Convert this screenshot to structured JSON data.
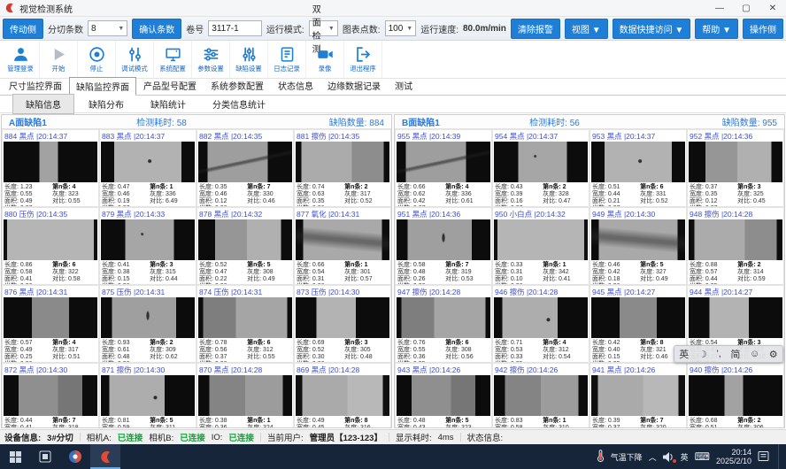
{
  "window": {
    "title": "视觉检测系统",
    "minimize": "—",
    "maximize": "▢",
    "close": "✕"
  },
  "toolbar": {
    "side_left": "传动侧",
    "strip_count_label": "分切条数",
    "strip_count_value": "8",
    "confirm_button": "确认条数",
    "roll_label": "卷号",
    "roll_value": "3117-1",
    "run_mode_label": "运行模式:",
    "run_mode_value": "双面检测",
    "chart_points_label": "图表点数:",
    "chart_points_value": "100",
    "speed_label": "运行速度:",
    "speed_value": "80.0m/min",
    "clear_alarm": "清除报警",
    "view_menu": "视图 ▼",
    "data_access_menu": "数据快捷访问 ▼",
    "help_menu": "帮助 ▼",
    "side_right": "操作侧"
  },
  "actions": [
    {
      "label": "管理登录",
      "icon": "user-icon",
      "name": "admin-login-button",
      "gray": false
    },
    {
      "label": "开始",
      "icon": "play-icon",
      "name": "start-button",
      "gray": true
    },
    {
      "label": "停止",
      "icon": "stop-icon",
      "name": "stop-button",
      "gray": false
    },
    {
      "label": "调试模式",
      "icon": "debug-sliders-icon",
      "name": "debug-mode-button",
      "gray": false
    },
    {
      "label": "系统配置",
      "icon": "monitor-icon",
      "name": "system-config-button",
      "gray": false
    },
    {
      "label": "参数设置",
      "icon": "sliders-horizontal-icon",
      "name": "parameter-settings-button",
      "gray": false
    },
    {
      "label": "缺陷设置",
      "icon": "sliders-vertical-icon",
      "name": "defect-settings-button",
      "gray": false
    },
    {
      "label": "日志记录",
      "icon": "journal-icon",
      "name": "log-record-button",
      "gray": false
    },
    {
      "label": "录像",
      "icon": "video-camera-icon",
      "name": "record-video-button",
      "gray": false
    },
    {
      "label": "退出程序",
      "icon": "exit-door-icon",
      "name": "exit-program-button",
      "gray": false
    }
  ],
  "main_tabs": [
    "尺寸监控界面",
    "缺陷监控界面",
    "产品型号配置",
    "系统参数配置",
    "状态信息",
    "边缘数据记录",
    "测试"
  ],
  "active_main_tab": 1,
  "sub_tabs": [
    "缺陷信息",
    "缺陷分布",
    "缺陷统计",
    "分类信息统计"
  ],
  "active_sub_tab": 0,
  "cell_labels": {
    "length": "长度",
    "width": "宽度",
    "area": "面积",
    "meter": "米数",
    "strip": "第n条",
    "gray": "灰度",
    "contrast": "对比"
  },
  "img_patterns": [
    "linear-gradient(90deg,#0c0c0c 0 38%,#a2a2a2 38% 58%,#0c0c0c 58% 100%)",
    "radial-gradient(circle at 52% 48%,#2e2e2e 0 1.5px,rgba(0,0,0,0) 2.5px),linear-gradient(90deg,#0c0c0c 0 14%,#b2b2b2 14% 86%,#0c0c0c 86% 100%)",
    "linear-gradient(168deg,rgba(0,0,0,0) 0 46%,rgba(30,30,30,.55) 49% 51%,rgba(0,0,0,0) 55%),linear-gradient(90deg,#0c0c0c 0 10%,#9e9e9e 10% 74%,#0c0c0c 74% 100%)",
    "linear-gradient(90deg,#0c0c0c 0 6%,#ababab 6% 60%,#8d8d8d 60% 94%,#0c0c0c 94% 100%)",
    "linear-gradient(90deg,#101010 0 4%,#b5b5b5 4% 96%,#101010 96% 100%)",
    "radial-gradient(circle at 44% 36%,#383838 0 1px,rgba(0,0,0,0) 2px),linear-gradient(90deg,#0c0c0c 0 26%,#a6a6a6 26% 78%,#0c0c0c 78% 100%)",
    "linear-gradient(90deg,#0c0c0c 0 18%,#969696 18% 52%,#b0b0b0 52% 88%,#0c0c0c 88% 100%)",
    "linear-gradient(185deg,rgba(0,0,0,0) 0 30%,rgba(40,40,40,.5) 47% 53%,rgba(0,0,0,0) 70%),linear-gradient(90deg,#0c0c0c 0 8%,#a9a9a9 8% 92%,#0c0c0c 92% 100%)",
    "linear-gradient(90deg,#0c0c0c 0 30%,#8a8a8a 30% 70%,#0c0c0c 70% 100%)",
    "radial-gradient(ellipse 2px 6px at 50% 45%,#303030 0 60%,rgba(0,0,0,0) 100%),linear-gradient(90deg,#0c0c0c 0 12%,#9f9f9f 12% 80%,#0c0c0c 80% 100%)",
    "linear-gradient(90deg,#0c0c0c 0 5%,#7e7e7e 5% 40%,#a5a5a5 40% 95%,#0c0c0c 95% 100%)",
    "linear-gradient(90deg,#0c0c0c 0 22%,#b3b3b3 22% 64%,#0c0c0c 64% 100%)",
    "linear-gradient(90deg,#0c0c0c 0 16%,#8f8f8f 16% 58%,#767676 58% 84%,#0c0c0c 84% 100%)",
    "radial-gradient(circle at 58% 55%,#2a2a2a 0 1.5px,rgba(0,0,0,0) 2.5px),linear-gradient(90deg,#0c0c0c 0 9%,#adadad 9% 68%,#0c0c0c 68% 100%)",
    "linear-gradient(90deg,#0c0c0c 0 12%,#848484 12% 50%,#9c9c9c 50% 90%,#0c0c0c 90% 100%)",
    "linear-gradient(90deg,#101010 0 7%,#aaaaaa 7% 55%,#b8b8b8 55% 93%,#101010 93% 100%)"
  ],
  "panels": [
    {
      "title": "A面缺陷1",
      "elapsed_label": "检测耗时:",
      "elapsed": "58",
      "count_label": "缺陷数量:",
      "count": "884",
      "cells": [
        {
          "id": "884",
          "type": "黑点",
          "time": "20:14:37",
          "img": 0,
          "len": "1.23",
          "wid": "0.55",
          "area": "0.49",
          "meter": "0.37",
          "strip": "4",
          "gray": "323",
          "contrast": "0.55"
        },
        {
          "id": "883",
          "type": "黑点",
          "time": "20:14:37",
          "img": 1,
          "len": "0.47",
          "wid": "0.46",
          "area": "0.19",
          "meter": "0.37",
          "strip": "1",
          "gray": "336",
          "contrast": "6.49"
        },
        {
          "id": "882",
          "type": "黑点",
          "time": "20:14:35",
          "img": 2,
          "len": "0.35",
          "wid": "0.46",
          "area": "0.12",
          "meter": "0.36",
          "strip": "7",
          "gray": "330",
          "contrast": "0.46"
        },
        {
          "id": "881",
          "type": "擦伤",
          "time": "20:14:35",
          "img": 3,
          "len": "0.74",
          "wid": "0.63",
          "area": "0.35",
          "meter": "0.36",
          "strip": "2",
          "gray": "317",
          "contrast": "0.52"
        },
        {
          "id": "880",
          "type": "压伤",
          "time": "20:14:35",
          "img": 4,
          "len": "0.86",
          "wid": "0.58",
          "area": "0.41",
          "meter": "0.36",
          "strip": "6",
          "gray": "322",
          "contrast": "0.58"
        },
        {
          "id": "879",
          "type": "黑点",
          "time": "20:14:33",
          "img": 5,
          "len": "0.41",
          "wid": "0.38",
          "area": "0.15",
          "meter": "0.36",
          "strip": "3",
          "gray": "315",
          "contrast": "0.44"
        },
        {
          "id": "878",
          "type": "黑点",
          "time": "20:14:32",
          "img": 6,
          "len": "0.52",
          "wid": "0.47",
          "area": "0.22",
          "meter": "0.36",
          "strip": "5",
          "gray": "308",
          "contrast": "0.49"
        },
        {
          "id": "877",
          "type": "氧化",
          "time": "20:14:31",
          "img": 7,
          "len": "0.66",
          "wid": "0.54",
          "area": "0.31",
          "meter": "0.36",
          "strip": "1",
          "gray": "301",
          "contrast": "0.57"
        },
        {
          "id": "876",
          "type": "黑点",
          "time": "20:14:31",
          "img": 8,
          "len": "0.57",
          "wid": "0.49",
          "area": "0.25",
          "meter": "0.36",
          "strip": "4",
          "gray": "317",
          "contrast": "0.51"
        },
        {
          "id": "875",
          "type": "压伤",
          "time": "20:14:31",
          "img": 9,
          "len": "0.93",
          "wid": "0.61",
          "area": "0.48",
          "meter": "0.36",
          "strip": "2",
          "gray": "309",
          "contrast": "0.62"
        },
        {
          "id": "874",
          "type": "压伤",
          "time": "20:14:31",
          "img": 10,
          "len": "0.78",
          "wid": "0.56",
          "area": "0.37",
          "meter": "0.36",
          "strip": "6",
          "gray": "312",
          "contrast": "0.55"
        },
        {
          "id": "873",
          "type": "压伤",
          "time": "20:14:30",
          "img": 11,
          "len": "0.69",
          "wid": "0.52",
          "area": "0.30",
          "meter": "0.36",
          "strip": "3",
          "gray": "305",
          "contrast": "0.48"
        },
        {
          "id": "872",
          "type": "黑点",
          "time": "20:14:30",
          "img": 12,
          "len": "0.44",
          "wid": "0.41",
          "area": "0.16",
          "meter": "0.35",
          "strip": "7",
          "gray": "318",
          "contrast": "0.46"
        },
        {
          "id": "871",
          "type": "擦伤",
          "time": "20:14:30",
          "img": 13,
          "len": "0.81",
          "wid": "0.59",
          "area": "0.40",
          "meter": "0.35",
          "strip": "5",
          "gray": "311",
          "contrast": "0.54"
        },
        {
          "id": "870",
          "type": "黑点",
          "time": "20:14:28",
          "img": 14,
          "len": "0.38",
          "wid": "0.36",
          "area": "0.13",
          "meter": "0.35",
          "strip": "1",
          "gray": "324",
          "contrast": "0.43"
        },
        {
          "id": "869",
          "type": "黑点",
          "time": "20:14:28",
          "img": 15,
          "len": "0.49",
          "wid": "0.45",
          "area": "0.20",
          "meter": "0.35",
          "strip": "8",
          "gray": "316",
          "contrast": "0.50"
        }
      ]
    },
    {
      "title": "B面缺陷1",
      "elapsed_label": "检测耗时:",
      "elapsed": "56",
      "count_label": "缺陷数量:",
      "count": "955",
      "cells": [
        {
          "id": "955",
          "type": "黑点",
          "time": "20:14:39",
          "img": 2,
          "len": "0.66",
          "wid": "0.62",
          "area": "0.42",
          "meter": "0.37",
          "strip": "4",
          "gray": "336",
          "contrast": "0.61"
        },
        {
          "id": "954",
          "type": "黑点",
          "time": "20:14:37",
          "img": 5,
          "len": "0.43",
          "wid": "0.39",
          "area": "0.16",
          "meter": "0.37",
          "strip": "2",
          "gray": "328",
          "contrast": "0.47"
        },
        {
          "id": "953",
          "type": "黑点",
          "time": "20:14:37",
          "img": 1,
          "len": "0.51",
          "wid": "0.44",
          "area": "0.21",
          "meter": "0.37",
          "strip": "6",
          "gray": "331",
          "contrast": "0.52"
        },
        {
          "id": "952",
          "type": "黑点",
          "time": "20:14:36",
          "img": 6,
          "len": "0.37",
          "wid": "0.35",
          "area": "0.12",
          "meter": "0.37",
          "strip": "3",
          "gray": "325",
          "contrast": "0.45"
        },
        {
          "id": "951",
          "type": "黑点",
          "time": "20:14:36",
          "img": 9,
          "len": "0.58",
          "wid": "0.48",
          "area": "0.26",
          "meter": "0.36",
          "strip": "7",
          "gray": "319",
          "contrast": "0.53"
        },
        {
          "id": "950",
          "type": "小白点",
          "time": "20:14:32",
          "img": 4,
          "len": "0.33",
          "wid": "0.31",
          "area": "0.10",
          "meter": "0.36",
          "strip": "1",
          "gray": "342",
          "contrast": "0.41"
        },
        {
          "id": "949",
          "type": "黑点",
          "time": "20:14:30",
          "img": 7,
          "len": "0.46",
          "wid": "0.42",
          "area": "0.18",
          "meter": "0.36",
          "strip": "5",
          "gray": "327",
          "contrast": "0.49"
        },
        {
          "id": "948",
          "type": "擦伤",
          "time": "20:14:28",
          "img": 3,
          "len": "0.88",
          "wid": "0.57",
          "area": "0.44",
          "meter": "0.35",
          "strip": "2",
          "gray": "314",
          "contrast": "0.59"
        },
        {
          "id": "947",
          "type": "擦伤",
          "time": "20:14:28",
          "img": 10,
          "len": "0.76",
          "wid": "0.55",
          "area": "0.36",
          "meter": "0.35",
          "strip": "6",
          "gray": "308",
          "contrast": "0.56"
        },
        {
          "id": "946",
          "type": "擦伤",
          "time": "20:14:28",
          "img": 13,
          "len": "0.71",
          "wid": "0.53",
          "area": "0.33",
          "meter": "0.35",
          "strip": "4",
          "gray": "312",
          "contrast": "0.54"
        },
        {
          "id": "945",
          "type": "黑点",
          "time": "20:14:27",
          "img": 8,
          "len": "0.42",
          "wid": "0.40",
          "area": "0.15",
          "meter": "0.35",
          "strip": "8",
          "gray": "321",
          "contrast": "0.46"
        },
        {
          "id": "944",
          "type": "黑点",
          "time": "20:14:27",
          "img": 11,
          "len": "0.54",
          "wid": "0.47",
          "area": "0.23",
          "meter": "0.35",
          "strip": "3",
          "gray": "317",
          "contrast": "0.50"
        },
        {
          "id": "943",
          "type": "黑点",
          "time": "20:14:26",
          "img": 12,
          "len": "0.48",
          "wid": "0.43",
          "area": "0.19",
          "meter": "0.35",
          "strip": "5",
          "gray": "323",
          "contrast": "0.48"
        },
        {
          "id": "942",
          "type": "擦伤",
          "time": "20:14:26",
          "img": 14,
          "len": "0.83",
          "wid": "0.58",
          "area": "0.42",
          "meter": "0.35",
          "strip": "1",
          "gray": "310",
          "contrast": "0.57"
        },
        {
          "id": "941",
          "type": "黑点",
          "time": "20:14:26",
          "img": 15,
          "len": "0.39",
          "wid": "0.37",
          "area": "0.13",
          "meter": "0.35",
          "strip": "7",
          "gray": "320",
          "contrast": "0.44"
        },
        {
          "id": "940",
          "type": "擦伤",
          "time": "20:14:26",
          "img": 0,
          "len": "0.68",
          "wid": "0.51",
          "area": "0.30",
          "meter": "0.35",
          "strip": "2",
          "gray": "306",
          "contrast": "0.52"
        }
      ]
    }
  ],
  "status": {
    "device_label": "设备信息:",
    "device": "3#分切",
    "camA_label": "相机A:",
    "camA": "已连接",
    "camB_label": "相机B:",
    "camB": "已连接",
    "io_label": "IO:",
    "io": "已连接",
    "user_label": "当前用户:",
    "user": "管理员【123-123】",
    "display_label": "显示耗时:",
    "display": "4ms",
    "state_label": "状态信息:"
  },
  "ime": {
    "items": [
      "英",
      "☽",
      "’,",
      "简",
      "☺",
      "⚙"
    ]
  },
  "taskbar": {
    "tray_text": "气温下降",
    "chevron": "︿",
    "lang": "英",
    "keyboard": "⌨",
    "time": "20:14",
    "date": "2025/2/10"
  }
}
